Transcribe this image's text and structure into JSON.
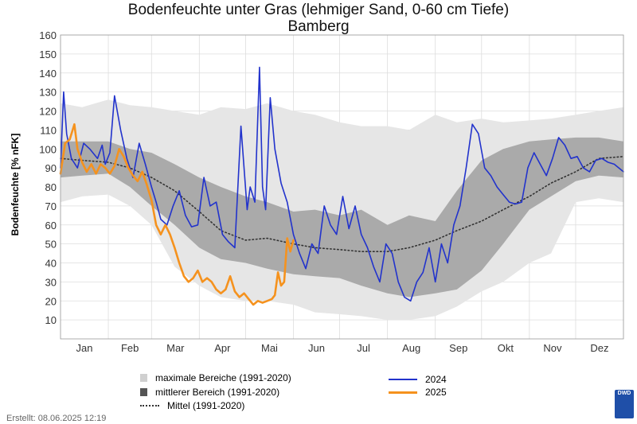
{
  "title": "Bodenfeuchte unter Gras (lehmiger Sand, 0-60 cm Tiefe)",
  "subtitle": "Bamberg",
  "created": "Erstellt:  08.06.2025 12:19",
  "colors": {
    "max_band": "#e6e6e6",
    "mid_band": "#aaaaaa",
    "series_2024": "#2233cc",
    "series_2025": "#f5921e"
  },
  "chart_data": {
    "type": "line",
    "title": "Bodenfeuchte unter Gras (lehmiger Sand, 0-60 cm Tiefe)",
    "subtitle": "Bamberg",
    "ylabel": "Bodenfeuchte [% nFK]",
    "xlabel": "",
    "x_unit": "day of year",
    "xlim": [
      1,
      366
    ],
    "ylim": [
      0,
      160
    ],
    "yticks": [
      10,
      20,
      30,
      40,
      50,
      60,
      70,
      80,
      90,
      100,
      110,
      120,
      130,
      140,
      150,
      160
    ],
    "month_labels": [
      "Jan",
      "Feb",
      "Mar",
      "Apr",
      "Mai",
      "Jun",
      "Jul",
      "Aug",
      "Sep",
      "Okt",
      "Nov",
      "Dez"
    ],
    "grid": true,
    "legend_position": "bottom",
    "legend": {
      "max_range": "maximale Bereiche (1991-2020)",
      "mid_range": "mittlerer Bereich (1991-2020)",
      "mean": "Mittel (1991-2020)",
      "s2024": "2024",
      "s2025": "2025"
    },
    "max_range": {
      "x": [
        1,
        15,
        32,
        46,
        60,
        75,
        91,
        105,
        121,
        135,
        152,
        166,
        182,
        196,
        213,
        227,
        244,
        258,
        274,
        288,
        305,
        319,
        335,
        350,
        366
      ],
      "lower": [
        72,
        75,
        76,
        70,
        60,
        38,
        28,
        22,
        20,
        20,
        18,
        14,
        13,
        12,
        10,
        10,
        12,
        17,
        25,
        30,
        40,
        45,
        72,
        74,
        72
      ],
      "upper": [
        124,
        122,
        126,
        123,
        122,
        120,
        118,
        122,
        121,
        124,
        120,
        118,
        114,
        112,
        112,
        110,
        118,
        114,
        116,
        114,
        115,
        116,
        118,
        120,
        122
      ]
    },
    "mid_range": {
      "x": [
        1,
        15,
        32,
        46,
        60,
        75,
        91,
        105,
        121,
        135,
        152,
        166,
        182,
        196,
        213,
        227,
        244,
        258,
        274,
        288,
        305,
        319,
        335,
        350,
        366
      ],
      "lower": [
        85,
        86,
        87,
        80,
        70,
        60,
        48,
        42,
        40,
        37,
        34,
        33,
        32,
        28,
        24,
        22,
        24,
        26,
        36,
        50,
        68,
        75,
        83,
        86,
        85
      ],
      "upper": [
        104,
        104,
        104,
        100,
        98,
        92,
        85,
        80,
        75,
        72,
        67,
        68,
        65,
        68,
        60,
        65,
        62,
        78,
        94,
        100,
        104,
        105,
        106,
        106,
        104
      ]
    },
    "mean": {
      "x": [
        1,
        15,
        32,
        46,
        60,
        75,
        91,
        105,
        121,
        135,
        152,
        166,
        182,
        196,
        213,
        227,
        244,
        258,
        274,
        288,
        305,
        319,
        335,
        350,
        366
      ],
      "y": [
        95,
        94,
        93,
        90,
        85,
        78,
        67,
        57,
        52,
        53,
        50,
        48,
        47,
        46,
        46,
        48,
        52,
        57,
        62,
        68,
        75,
        82,
        88,
        95,
        96
      ]
    },
    "series": [
      {
        "name": "2024",
        "x": [
          1,
          3,
          5,
          8,
          12,
          16,
          20,
          25,
          28,
          30,
          33,
          36,
          40,
          44,
          48,
          52,
          56,
          60,
          63,
          66,
          70,
          74,
          78,
          82,
          86,
          90,
          94,
          98,
          102,
          106,
          110,
          114,
          118,
          122,
          124,
          127,
          130,
          132,
          134,
          137,
          140,
          144,
          148,
          152,
          156,
          160,
          164,
          168,
          172,
          176,
          180,
          184,
          188,
          192,
          196,
          200,
          204,
          208,
          212,
          216,
          220,
          224,
          228,
          232,
          236,
          240,
          244,
          248,
          252,
          256,
          260,
          264,
          268,
          272,
          276,
          280,
          284,
          288,
          292,
          296,
          300,
          304,
          308,
          312,
          316,
          320,
          324,
          328,
          332,
          336,
          340,
          344,
          348,
          352,
          356,
          360,
          366
        ],
        "y": [
          90,
          130,
          108,
          95,
          90,
          103,
          100,
          95,
          102,
          92,
          98,
          128,
          110,
          95,
          85,
          103,
          92,
          80,
          72,
          63,
          60,
          70,
          78,
          65,
          59,
          60,
          85,
          70,
          72,
          55,
          51,
          48,
          112,
          68,
          80,
          72,
          143,
          80,
          68,
          127,
          100,
          82,
          72,
          55,
          45,
          37,
          50,
          45,
          70,
          60,
          55,
          75,
          58,
          70,
          55,
          48,
          38,
          30,
          50,
          45,
          30,
          22,
          20,
          30,
          35,
          48,
          30,
          50,
          40,
          60,
          70,
          90,
          113,
          108,
          90,
          86,
          80,
          76,
          72,
          71,
          72,
          90,
          98,
          92,
          86,
          95,
          106,
          102,
          95,
          96,
          90,
          88,
          94,
          95,
          93,
          92,
          88
        ]
      },
      {
        "name": "2025",
        "x": [
          1,
          4,
          7,
          10,
          12,
          15,
          18,
          21,
          24,
          27,
          30,
          33,
          36,
          39,
          42,
          45,
          48,
          51,
          54,
          57,
          60,
          63,
          66,
          69,
          72,
          75,
          78,
          81,
          84,
          87,
          90,
          93,
          96,
          99,
          102,
          105,
          108,
          111,
          114,
          117,
          120,
          123,
          126,
          129,
          132,
          135,
          138,
          140,
          142,
          144,
          146,
          148,
          150,
          152
        ],
        "y": [
          87,
          103,
          105,
          113,
          100,
          93,
          88,
          92,
          87,
          92,
          90,
          87,
          91,
          100,
          96,
          90,
          86,
          83,
          88,
          81,
          73,
          60,
          55,
          60,
          55,
          48,
          40,
          33,
          30,
          32,
          36,
          30,
          32,
          30,
          26,
          24,
          26,
          33,
          25,
          22,
          24,
          21,
          18,
          20,
          19,
          20,
          21,
          23,
          35,
          28,
          30,
          53,
          46,
          52
        ]
      }
    ]
  }
}
